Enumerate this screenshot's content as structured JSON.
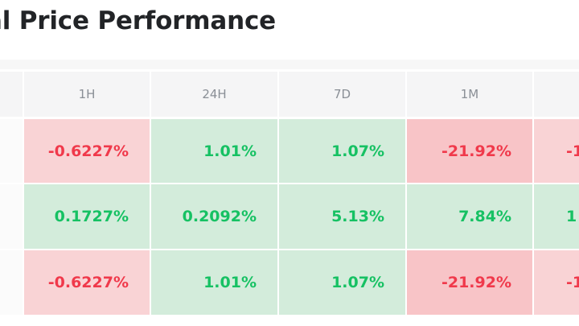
{
  "title": "al Price Performance",
  "columns": [
    "",
    "1H",
    "24H",
    "7D",
    "1M",
    ""
  ],
  "rows": [
    {
      "label": "",
      "cells": [
        {
          "value": "-0.6227%",
          "tone": "neg"
        },
        {
          "value": "1.01%",
          "tone": "pos"
        },
        {
          "value": "1.07%",
          "tone": "pos"
        },
        {
          "value": "-21.92%",
          "tone": "neg-strong"
        },
        {
          "value": "-1",
          "tone": "neg"
        }
      ]
    },
    {
      "label": "",
      "cells": [
        {
          "value": "0.1727%",
          "tone": "pos"
        },
        {
          "value": "0.2092%",
          "tone": "pos"
        },
        {
          "value": "5.13%",
          "tone": "pos"
        },
        {
          "value": "7.84%",
          "tone": "pos"
        },
        {
          "value": "1",
          "tone": "pos"
        }
      ]
    },
    {
      "label": "",
      "cells": [
        {
          "value": "-0.6227%",
          "tone": "neg"
        },
        {
          "value": "1.01%",
          "tone": "pos"
        },
        {
          "value": "1.07%",
          "tone": "pos"
        },
        {
          "value": "-21.92%",
          "tone": "neg-strong"
        },
        {
          "value": "-1",
          "tone": "neg"
        }
      ]
    }
  ],
  "colors": {
    "positive_text": "#16c163",
    "negative_text": "#f0394b",
    "positive_bg": "#d3ecdb",
    "negative_bg": "#f9d3d5",
    "negative_strong_bg": "#f8c4c7",
    "header_bg": "#f5f5f6"
  }
}
